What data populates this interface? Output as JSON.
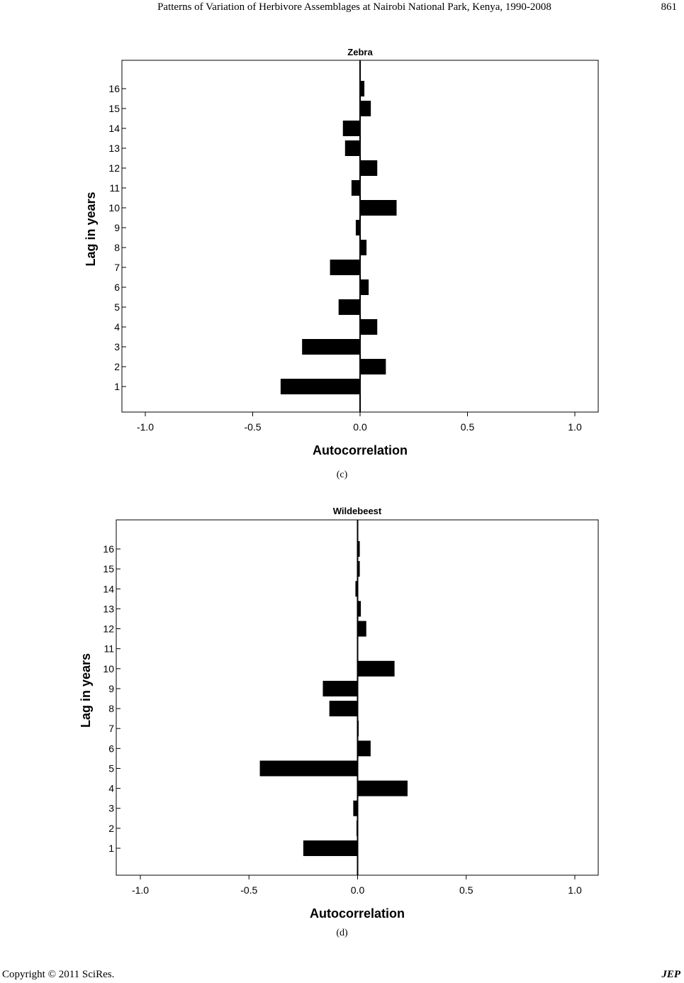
{
  "header": {
    "running_title": "Patterns of Variation of Herbivore Assemblages at Nairobi National Park, Kenya, 1990-2008",
    "page_number": "861"
  },
  "footer": {
    "copyright": "Copyright © 2011 SciRes.",
    "journal": "JEP"
  },
  "captions": [
    "(c)",
    "(d)"
  ],
  "chart_data": [
    {
      "type": "bar",
      "orientation": "horizontal",
      "title": "Zebra",
      "xlabel": "Autocorrelation",
      "ylabel": "Lag in years",
      "xlim": [
        -1.0,
        1.0
      ],
      "xticks": [
        "-1.0",
        "-0.5",
        "0.0",
        "0.5",
        "1.0"
      ],
      "categories": [
        "1",
        "2",
        "3",
        "4",
        "5",
        "6",
        "7",
        "8",
        "9",
        "10",
        "11",
        "12",
        "13",
        "14",
        "15",
        "16"
      ],
      "values": [
        -0.37,
        0.12,
        -0.27,
        0.08,
        -0.1,
        0.04,
        -0.14,
        0.03,
        -0.02,
        0.17,
        -0.04,
        0.08,
        -0.07,
        -0.08,
        0.05,
        0.02
      ],
      "bar_color": "#000000",
      "grid": false
    },
    {
      "type": "bar",
      "orientation": "horizontal",
      "title": "Wildebeest",
      "xlabel": "Autocorrelation",
      "ylabel": "Lag in years",
      "xlim": [
        -1.0,
        1.0
      ],
      "xticks": [
        "-1.0",
        "-0.5",
        "0.0",
        "0.5",
        "1.0"
      ],
      "categories": [
        "1",
        "2",
        "3",
        "4",
        "5",
        "6",
        "7",
        "8",
        "9",
        "10",
        "11",
        "12",
        "13",
        "14",
        "15",
        "16"
      ],
      "values": [
        -0.25,
        -0.005,
        -0.02,
        0.23,
        -0.45,
        0.06,
        0.005,
        -0.13,
        -0.16,
        0.17,
        0.0,
        0.04,
        0.015,
        -0.01,
        0.01,
        0.01
      ],
      "bar_color": "#000000",
      "grid": false
    }
  ]
}
